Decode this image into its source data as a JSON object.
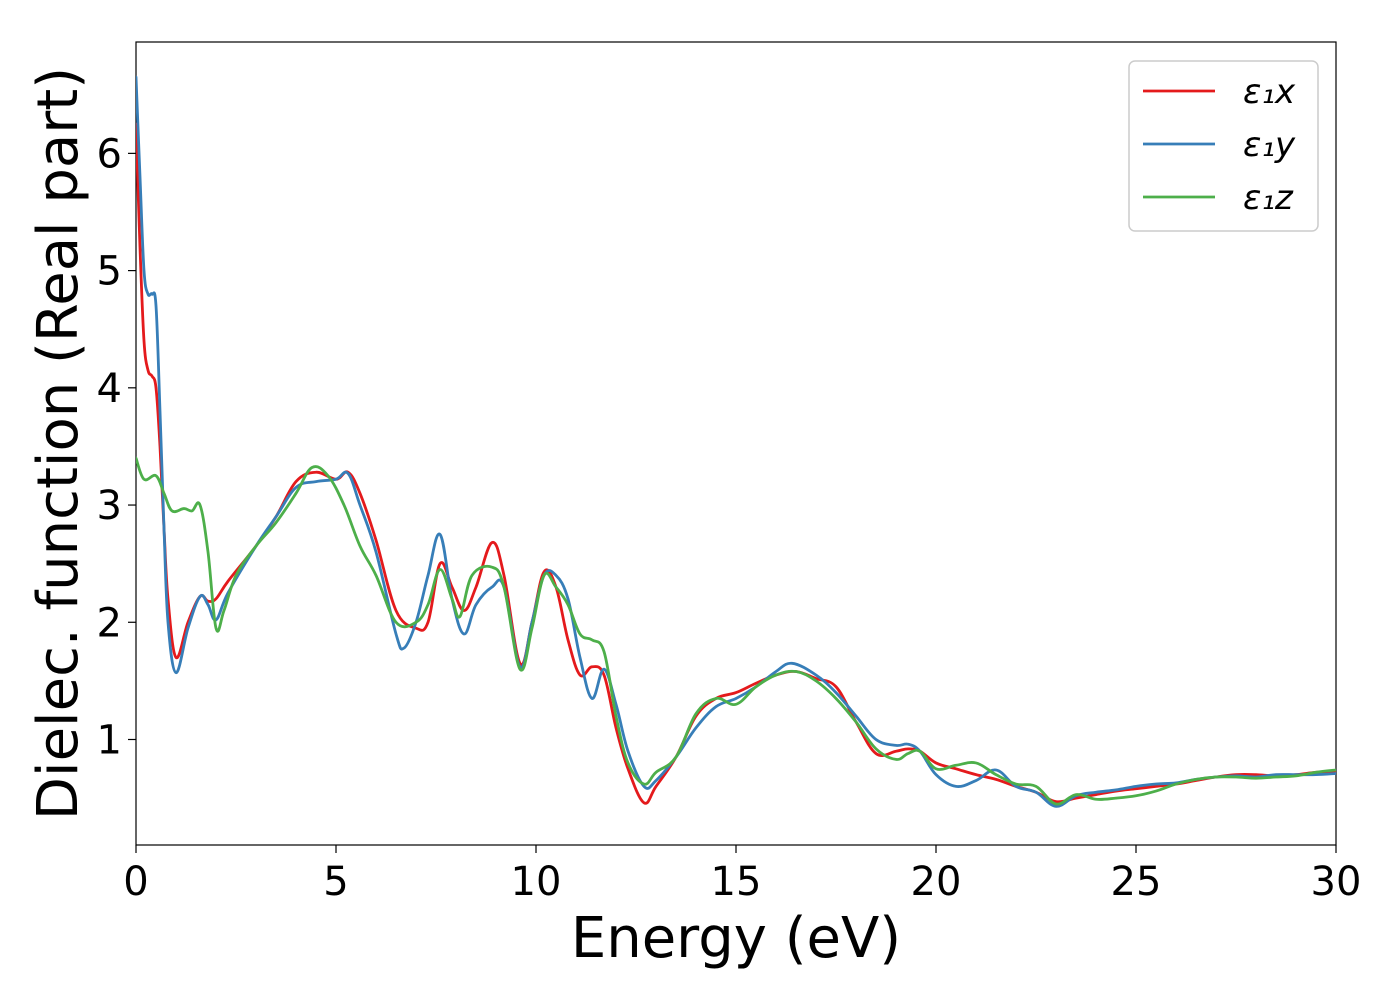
{
  "chart_data": {
    "type": "line",
    "title": "",
    "xlabel": "Energy (eV)",
    "ylabel": "Dielec. function (Real part)",
    "xlim": [
      0,
      30
    ],
    "ylim": [
      0.1,
      6.95
    ],
    "xticks": [
      0,
      5,
      10,
      15,
      20,
      25,
      30
    ],
    "yticks": [
      1,
      2,
      3,
      4,
      5,
      6
    ],
    "grid": false,
    "legend_position": "top-right",
    "series": [
      {
        "name": "ε₁x",
        "color": "#e41a1c",
        "x": [
          0,
          0.1,
          0.2,
          0.3,
          0.4,
          0.5,
          0.6,
          0.7,
          0.8,
          1.0,
          1.3,
          1.6,
          1.8,
          2.0,
          2.3,
          3.0,
          3.5,
          4.0,
          4.5,
          5.0,
          5.3,
          5.6,
          6.0,
          6.5,
          7.0,
          7.3,
          7.6,
          7.9,
          8.2,
          8.5,
          8.9,
          9.2,
          9.6,
          9.9,
          10.2,
          10.5,
          10.8,
          11.1,
          11.4,
          11.7,
          12.0,
          12.3,
          12.7,
          13.0,
          13.5,
          14.0,
          14.5,
          15.0,
          15.5,
          16.0,
          16.5,
          17.0,
          17.5,
          18.0,
          18.5,
          19.0,
          19.3,
          19.6,
          20.0,
          20.5,
          21.0,
          21.5,
          22.0,
          22.5,
          23.0,
          23.5,
          24.0,
          24.5,
          25.0,
          25.5,
          26.0,
          26.5,
          27.0,
          27.5,
          28.0,
          28.5,
          29.0,
          29.5,
          30.0
        ],
        "y": [
          6.25,
          5.2,
          4.4,
          4.15,
          4.1,
          4.0,
          3.5,
          2.8,
          2.2,
          1.7,
          2.0,
          2.22,
          2.18,
          2.2,
          2.35,
          2.65,
          2.9,
          3.2,
          3.28,
          3.22,
          3.28,
          3.1,
          2.7,
          2.1,
          1.95,
          2.0,
          2.5,
          2.3,
          2.1,
          2.3,
          2.68,
          2.4,
          1.65,
          2.0,
          2.43,
          2.3,
          1.85,
          1.55,
          1.62,
          1.55,
          1.1,
          0.75,
          0.46,
          0.6,
          0.85,
          1.2,
          1.35,
          1.4,
          1.48,
          1.55,
          1.58,
          1.52,
          1.45,
          1.15,
          0.88,
          0.9,
          0.92,
          0.9,
          0.8,
          0.75,
          0.7,
          0.66,
          0.6,
          0.55,
          0.47,
          0.5,
          0.53,
          0.56,
          0.58,
          0.6,
          0.62,
          0.65,
          0.68,
          0.7,
          0.7,
          0.69,
          0.7,
          0.72,
          0.73
        ]
      },
      {
        "name": "ε₁y",
        "color": "#377eb8",
        "x": [
          0,
          0.1,
          0.2,
          0.3,
          0.4,
          0.5,
          0.6,
          0.7,
          0.8,
          1.0,
          1.3,
          1.6,
          1.8,
          2.0,
          2.3,
          3.0,
          3.5,
          4.0,
          4.5,
          5.0,
          5.3,
          5.6,
          6.0,
          6.5,
          6.7,
          7.0,
          7.3,
          7.6,
          7.9,
          8.2,
          8.5,
          8.9,
          9.2,
          9.6,
          9.9,
          10.2,
          10.5,
          10.8,
          11.1,
          11.4,
          11.7,
          12.0,
          12.3,
          12.7,
          13.0,
          13.5,
          14.0,
          14.5,
          15.0,
          15.5,
          16.0,
          16.4,
          17.0,
          17.5,
          18.0,
          18.5,
          19.0,
          19.3,
          19.6,
          20.0,
          20.5,
          21.0,
          21.5,
          22.0,
          22.5,
          23.0,
          23.5,
          24.0,
          24.5,
          25.0,
          25.5,
          26.0,
          26.5,
          27.0,
          27.5,
          28.0,
          28.5,
          29.0,
          29.5,
          30.0
        ],
        "y": [
          6.65,
          5.8,
          5.0,
          4.8,
          4.8,
          4.7,
          3.8,
          2.8,
          2.0,
          1.57,
          1.95,
          2.22,
          2.15,
          2.02,
          2.25,
          2.65,
          2.9,
          3.15,
          3.2,
          3.22,
          3.27,
          3.0,
          2.6,
          1.9,
          1.78,
          2.0,
          2.4,
          2.75,
          2.2,
          1.9,
          2.15,
          2.3,
          2.3,
          1.62,
          2.0,
          2.4,
          2.4,
          2.2,
          1.7,
          1.35,
          1.6,
          1.3,
          0.9,
          0.6,
          0.65,
          0.85,
          1.1,
          1.28,
          1.35,
          1.45,
          1.58,
          1.65,
          1.55,
          1.4,
          1.2,
          1.0,
          0.95,
          0.96,
          0.9,
          0.7,
          0.6,
          0.65,
          0.74,
          0.6,
          0.55,
          0.43,
          0.52,
          0.55,
          0.57,
          0.6,
          0.62,
          0.63,
          0.66,
          0.68,
          0.69,
          0.68,
          0.7,
          0.7,
          0.7,
          0.71
        ]
      },
      {
        "name": "ε₁z",
        "color": "#4daf4a",
        "x": [
          0,
          0.2,
          0.5,
          0.7,
          0.9,
          1.2,
          1.4,
          1.6,
          1.8,
          2.0,
          2.2,
          2.5,
          3.0,
          3.5,
          4.0,
          4.4,
          4.8,
          5.2,
          5.6,
          6.0,
          6.5,
          7.0,
          7.3,
          7.6,
          7.9,
          8.1,
          8.4,
          8.9,
          9.2,
          9.6,
          9.9,
          10.2,
          10.5,
          10.8,
          11.1,
          11.4,
          11.7,
          12.0,
          12.3,
          12.7,
          13.0,
          13.5,
          14.0,
          14.5,
          15.0,
          15.5,
          16.0,
          16.5,
          17.0,
          17.5,
          18.0,
          18.5,
          19.0,
          19.3,
          19.6,
          20.0,
          20.5,
          21.0,
          21.5,
          22.0,
          22.5,
          23.0,
          23.5,
          24.0,
          24.5,
          25.0,
          25.5,
          26.0,
          26.5,
          27.0,
          27.5,
          28.0,
          28.5,
          29.0,
          29.5,
          30.0
        ],
        "y": [
          3.4,
          3.22,
          3.25,
          3.1,
          2.95,
          2.97,
          2.95,
          3.0,
          2.6,
          1.95,
          2.1,
          2.4,
          2.65,
          2.85,
          3.1,
          3.32,
          3.25,
          3.0,
          2.65,
          2.4,
          2.0,
          2.0,
          2.15,
          2.45,
          2.2,
          2.05,
          2.4,
          2.47,
          2.3,
          1.6,
          1.95,
          2.4,
          2.3,
          2.15,
          1.9,
          1.85,
          1.75,
          1.2,
          0.8,
          0.62,
          0.72,
          0.85,
          1.22,
          1.35,
          1.3,
          1.45,
          1.55,
          1.58,
          1.5,
          1.35,
          1.15,
          0.92,
          0.83,
          0.88,
          0.9,
          0.75,
          0.78,
          0.8,
          0.7,
          0.62,
          0.6,
          0.45,
          0.53,
          0.49,
          0.5,
          0.52,
          0.56,
          0.62,
          0.66,
          0.68,
          0.68,
          0.67,
          0.68,
          0.69,
          0.72,
          0.74
        ]
      }
    ]
  }
}
